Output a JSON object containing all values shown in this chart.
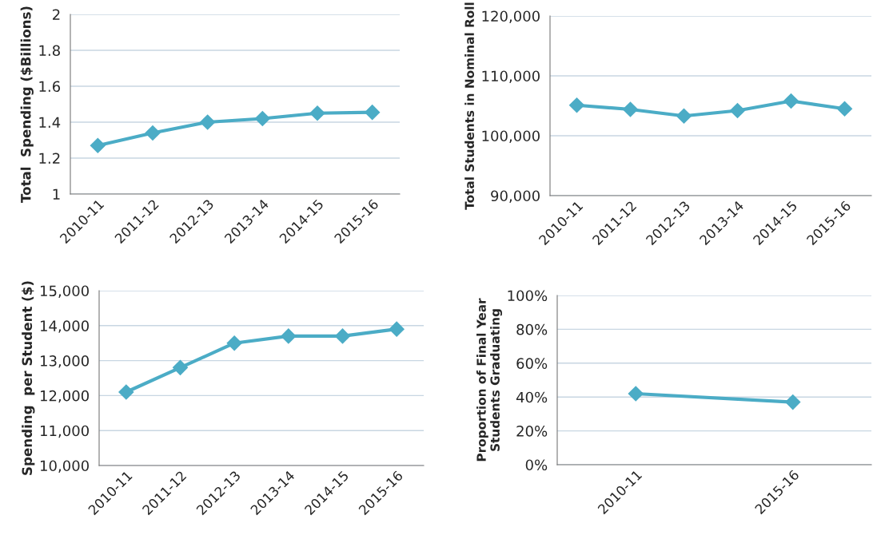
{
  "chart_data": [
    {
      "type": "line",
      "ylabel": "Total  Spending ($Billions)",
      "categories": [
        "2010-11",
        "2011-12",
        "2012-13",
        "2013-14",
        "2014-15",
        "2015-16"
      ],
      "values": [
        1.27,
        1.34,
        1.4,
        1.42,
        1.45,
        1.455
      ],
      "color": "#4bacc6",
      "ylim": [
        1,
        2
      ],
      "yticks": [
        1,
        1.2,
        1.4,
        1.6,
        1.8,
        2
      ],
      "grid": "y",
      "marker": "diamond",
      "line_style": "solid"
    },
    {
      "type": "line",
      "ylabel": "Total Students in Nominal Roll",
      "categories": [
        "2010-11",
        "2011-12",
        "2012-13",
        "2013-14",
        "2014-15",
        "2015-16"
      ],
      "values": [
        105100,
        104400,
        103300,
        104200,
        105800,
        104500
      ],
      "color": "#4bacc6",
      "ylim": [
        90000,
        120000
      ],
      "yticks": [
        {
          "value": 90000,
          "label": "90,000"
        },
        {
          "value": 100000,
          "label": "100,000"
        },
        {
          "value": 110000,
          "label": "110,000"
        },
        {
          "value": 120000,
          "label": "120,000"
        }
      ],
      "grid": "y",
      "marker": "diamond",
      "line_style": "solid"
    },
    {
      "type": "line",
      "ylabel": "Spending  per Student ($)",
      "categories": [
        "2010-11",
        "2011-12",
        "2012-13",
        "2013-14",
        "2014-15",
        "2015-16"
      ],
      "values": [
        12100,
        12800,
        13500,
        13700,
        13700,
        13900
      ],
      "color": "#4bacc6",
      "ylim": [
        10000,
        15000
      ],
      "yticks": [
        {
          "value": 10000,
          "label": "10,000"
        },
        {
          "value": 11000,
          "label": "11,000"
        },
        {
          "value": 12000,
          "label": "12,000"
        },
        {
          "value": 13000,
          "label": "13,000"
        },
        {
          "value": 14000,
          "label": "14,000"
        },
        {
          "value": 15000,
          "label": "15,000"
        }
      ],
      "grid": "y",
      "marker": "diamond",
      "line_style": "solid"
    },
    {
      "type": "line",
      "ylabel": "Proportion of Final Year\nStudents Graduating",
      "categories": [
        "2010-11",
        "2015-16"
      ],
      "values": [
        42,
        37
      ],
      "color": "#4bacc6",
      "ylim": [
        0,
        100
      ],
      "yticks": [
        {
          "value": 0,
          "label": "0%"
        },
        {
          "value": 20,
          "label": "20%"
        },
        {
          "value": 40,
          "label": "40%"
        },
        {
          "value": 60,
          "label": "60%"
        },
        {
          "value": 80,
          "label": "80%"
        },
        {
          "value": 100,
          "label": "100%"
        }
      ],
      "grid": "y",
      "marker": "diamond",
      "line_style": "solid"
    }
  ]
}
